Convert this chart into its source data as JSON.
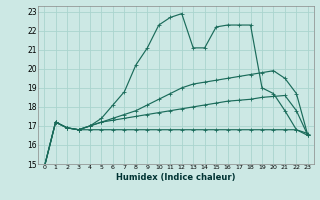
{
  "xlabel": "Humidex (Indice chaleur)",
  "bg_color": "#cce8e4",
  "grid_color": "#aad4ce",
  "line_color": "#1a6b5a",
  "xlim": [
    -0.5,
    23.5
  ],
  "ylim": [
    15,
    23.3
  ],
  "xticks": [
    0,
    1,
    2,
    3,
    4,
    5,
    6,
    7,
    8,
    9,
    10,
    11,
    12,
    13,
    14,
    15,
    16,
    17,
    18,
    19,
    20,
    21,
    22,
    23
  ],
  "yticks": [
    15,
    16,
    17,
    18,
    19,
    20,
    21,
    22,
    23
  ],
  "line1_x": [
    0,
    1,
    2,
    3,
    4,
    5,
    6,
    7,
    8,
    9,
    10,
    11,
    12,
    13,
    14,
    15,
    16,
    17,
    18,
    19,
    20,
    21,
    22,
    23
  ],
  "line1_y": [
    14.8,
    17.2,
    16.9,
    16.8,
    16.8,
    16.8,
    16.8,
    16.8,
    16.8,
    16.8,
    16.8,
    16.8,
    16.8,
    16.8,
    16.8,
    16.8,
    16.8,
    16.8,
    16.8,
    16.8,
    16.8,
    16.8,
    16.8,
    16.6
  ],
  "line2_x": [
    0,
    1,
    2,
    3,
    4,
    5,
    6,
    7,
    8,
    9,
    10,
    11,
    12,
    13,
    14,
    15,
    16,
    17,
    18,
    19,
    20,
    21,
    22,
    23
  ],
  "line2_y": [
    14.8,
    17.2,
    16.9,
    16.8,
    17.0,
    17.2,
    17.3,
    17.4,
    17.5,
    17.6,
    17.7,
    17.8,
    17.9,
    18.0,
    18.1,
    18.2,
    18.3,
    18.35,
    18.4,
    18.5,
    18.55,
    18.6,
    17.8,
    16.5
  ],
  "line3_x": [
    0,
    1,
    2,
    3,
    4,
    5,
    6,
    7,
    8,
    9,
    10,
    11,
    12,
    13,
    14,
    15,
    16,
    17,
    18,
    19,
    20,
    21,
    22,
    23
  ],
  "line3_y": [
    14.8,
    17.2,
    16.9,
    16.8,
    17.0,
    17.2,
    17.4,
    17.6,
    17.8,
    18.1,
    18.4,
    18.7,
    19.0,
    19.2,
    19.3,
    19.4,
    19.5,
    19.6,
    19.7,
    19.8,
    19.9,
    19.5,
    18.7,
    16.5
  ],
  "line4_x": [
    0,
    1,
    2,
    3,
    4,
    5,
    6,
    7,
    8,
    9,
    10,
    11,
    12,
    13,
    14,
    15,
    16,
    17,
    18,
    19,
    20,
    21,
    22,
    23
  ],
  "line4_y": [
    14.8,
    17.2,
    16.9,
    16.8,
    17.0,
    17.4,
    18.1,
    18.8,
    20.2,
    21.1,
    22.3,
    22.7,
    22.9,
    21.1,
    21.1,
    22.2,
    22.3,
    22.3,
    22.3,
    19.0,
    18.7,
    17.8,
    16.8,
    16.5
  ]
}
